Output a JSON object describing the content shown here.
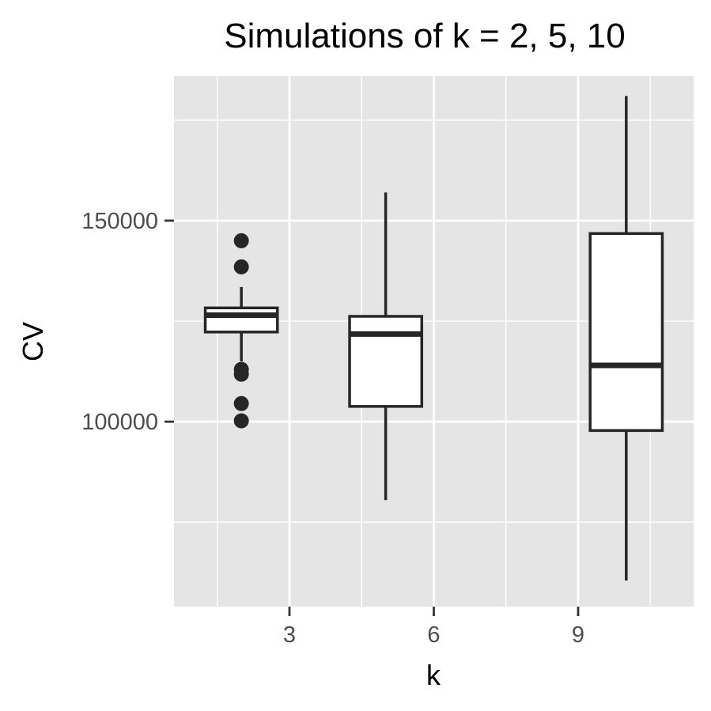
{
  "chart_data": {
    "type": "boxplot",
    "title": "Simulations of k = 2, 5, 10",
    "xlabel": "k",
    "ylabel": "CV",
    "xlim": [
      0.6,
      11.4
    ],
    "ylim": [
      54000,
      186000
    ],
    "x_ticks": [
      3,
      6,
      9
    ],
    "x_tick_labels": [
      "3",
      "6",
      "9"
    ],
    "y_ticks": [
      100000,
      150000
    ],
    "y_tick_labels": [
      "100000",
      "150000"
    ],
    "y_minor_ticks": [
      75000,
      125000,
      175000
    ],
    "x_minor_ticks": [
      1.5,
      4.5,
      7.5,
      10.5
    ],
    "grid": true,
    "panel_background": "#e5e5e5",
    "box_color": "#262626",
    "boxes": [
      {
        "k": 2,
        "whisker_low": 115000,
        "q1": 122300,
        "median": 126500,
        "q3": 128300,
        "whisker_high": 133500,
        "outliers": [
          145000,
          138500,
          113000,
          111800,
          104500,
          100200
        ]
      },
      {
        "k": 5,
        "whisker_low": 80500,
        "q1": 103800,
        "median": 121800,
        "q3": 126200,
        "whisker_high": 157000,
        "outliers": []
      },
      {
        "k": 10,
        "whisker_low": 60500,
        "q1": 97800,
        "median": 114000,
        "q3": 146800,
        "whisker_high": 181000,
        "outliers": []
      }
    ]
  }
}
